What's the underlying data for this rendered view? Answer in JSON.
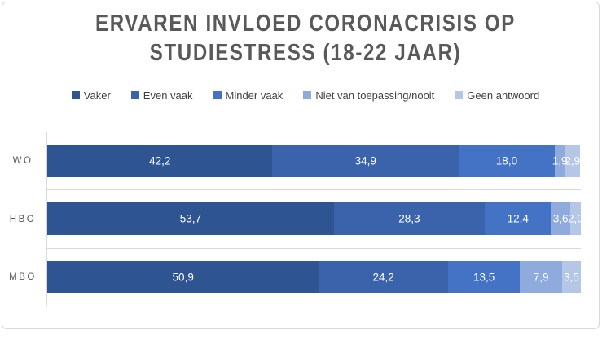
{
  "chart_data": {
    "type": "bar",
    "subtype": "horizontal-stacked-100",
    "title": "ERVAREN INVLOED CORONACRISIS OP STUDIESTRESS (18-22 JAAR)",
    "title_lines": [
      "ERVAREN INVLOED CORONACRISIS OP",
      "STUDIESTRESS (18-22 JAAR)"
    ],
    "categories": [
      "WO",
      "HBO",
      "MBO"
    ],
    "series": [
      {
        "name": "Vaker",
        "color": "#2F5492",
        "values": [
          42.2,
          53.7,
          50.9
        ]
      },
      {
        "name": "Even vaak",
        "color": "#3B63AC",
        "values": [
          34.9,
          28.3,
          24.2
        ]
      },
      {
        "name": "Minder vaak",
        "color": "#4472C4",
        "values": [
          18.0,
          12.4,
          13.5
        ]
      },
      {
        "name": "Niet van toepassing/nooit",
        "color": "#8FAADC",
        "values": [
          1.9,
          3.6,
          7.9
        ]
      },
      {
        "name": "Geen antwoord",
        "color": "#B4C7E7",
        "values": [
          2.9,
          2.0,
          3.5
        ]
      }
    ],
    "data_labels": {
      "shown": true,
      "decimal_separator": ",",
      "formatted": [
        [
          "42,2",
          "34,9",
          "18,0",
          "1,9",
          "2,9"
        ],
        [
          "53,7",
          "28,3",
          "12,4",
          "3,6",
          "2,0"
        ],
        [
          "50,9",
          "24,2",
          "13,5",
          "7,9",
          "3,5"
        ]
      ]
    },
    "value_axis": {
      "min": 0,
      "max": 100,
      "shown": false
    },
    "legend_position": "top",
    "gridlines": "category-separators"
  },
  "colors": {
    "background": "#FFFFFF",
    "frame_border": "#D9D9D9",
    "grid": "#D9D9D9",
    "title_text": "#595959",
    "category_text": "#595959",
    "legend_text": "#404040",
    "data_label_text": "#FFFFFF"
  }
}
